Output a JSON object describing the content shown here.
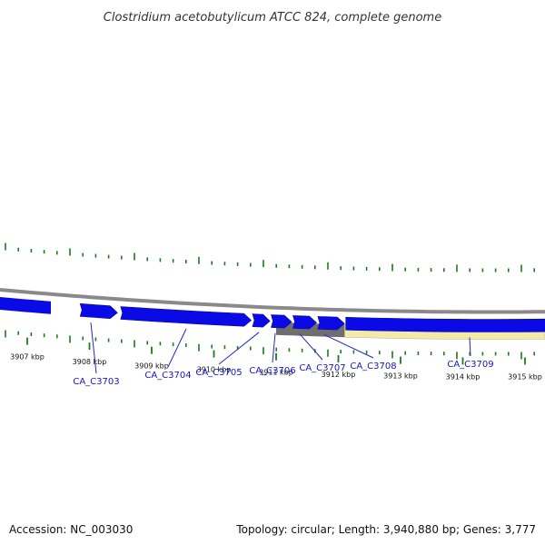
{
  "title": "Clostridium acetobutylicum ATCC 824, complete genome",
  "footer": {
    "accession": "Accession: NC_003030",
    "summary": "Topology: circular; Length: 3,940,880 bp; Genes: 3,777"
  },
  "colors": {
    "gene_forward": "#0a0ae6",
    "gene_other": "#6e6e6e",
    "region_highlight": "#f3eaa8",
    "backbone": "#8a8a8a",
    "tick": "#1a7d1a",
    "label_link": "#2424c8"
  },
  "kbp_ticks": [
    {
      "kbp": 3907,
      "label": "3907 kbp"
    },
    {
      "kbp": 3908,
      "label": "3908 kbp"
    },
    {
      "kbp": 3909,
      "label": "3909 kbp"
    },
    {
      "kbp": 3910,
      "label": "3910 kbp"
    },
    {
      "kbp": 3911,
      "label": "3911 kbp"
    },
    {
      "kbp": 3912,
      "label": "3912 kbp"
    },
    {
      "kbp": 3913,
      "label": "3913 kbp"
    },
    {
      "kbp": 3914,
      "label": "3914 kbp"
    },
    {
      "kbp": 3915,
      "label": "3915 kbp"
    }
  ],
  "genes": [
    {
      "name": "CA_C3703",
      "start_kbp": 3907.85,
      "end_kbp": 3908.45,
      "strand": "+"
    },
    {
      "name": "CA_C3704",
      "start_kbp": 3908.5,
      "end_kbp": 3910.6,
      "strand": "+"
    },
    {
      "name": "CA_C3705",
      "start_kbp": 3910.62,
      "end_kbp": 3910.9,
      "strand": "+"
    },
    {
      "name": "CA_C3706",
      "start_kbp": 3910.92,
      "end_kbp": 3911.25,
      "strand": "+"
    },
    {
      "name": "CA_C3707",
      "start_kbp": 3911.27,
      "end_kbp": 3911.65,
      "strand": "+"
    },
    {
      "name": "CA_C3708",
      "start_kbp": 3911.67,
      "end_kbp": 3912.1,
      "strand": "+"
    },
    {
      "name": "CA_C3709",
      "start_kbp": 3912.12,
      "end_kbp": 3915.6,
      "strand": "+"
    }
  ],
  "other_features": [
    {
      "start_kbp": 3911.0,
      "end_kbp": 3912.1,
      "type": "gray"
    }
  ],
  "highlight_region": {
    "start_kbp": 3912.1,
    "end_kbp": 3915.6
  }
}
